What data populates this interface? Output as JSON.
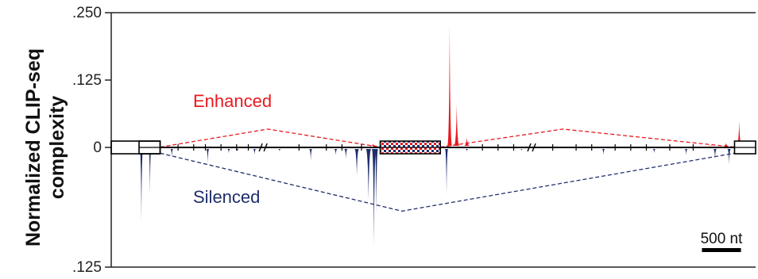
{
  "chart_data": {
    "type": "area",
    "ylabel_lines": [
      "Normalized CLIP-seq",
      "complexity"
    ],
    "yticks": [
      {
        "label": ".250",
        "value": 0.25
      },
      {
        "label": ".125",
        "value": 0.125
      },
      {
        "label": "0",
        "value": 0
      },
      {
        "label": ".125",
        "value": -0.125
      }
    ],
    "ylim": [
      -0.125,
      0.25
    ],
    "x_unit": "nt",
    "xlim": [
      0,
      7900
    ],
    "colors": {
      "enhanced": "#e8191f",
      "silenced": "#1f2d6b",
      "axis": "#222222"
    },
    "annotations": [
      {
        "text": "Enhanced",
        "color": "#e8191f"
      },
      {
        "text": "Silenced",
        "color": "#1f2d6b"
      }
    ],
    "scale_bar": {
      "label": "500 nt",
      "length_nt": 500
    },
    "exons": [
      {
        "name": "upstream-exon",
        "start": 0,
        "end": 270
      },
      {
        "name": "alternative-exon",
        "start": 3090,
        "end": 3860
      },
      {
        "name": "downstream-exon",
        "start": 7630,
        "end": 7900
      }
    ],
    "axis_breaks_x": [
      1600,
      5040
    ],
    "splice_lines": {
      "enhanced": [
        {
          "x": [
            270,
            1650,
            3090
          ],
          "y": [
            0.0006,
            0.034,
            0.0006
          ]
        },
        {
          "x": [
            3860,
            5430,
            7630
          ],
          "y": [
            0.0006,
            0.034,
            0.0006
          ]
        }
      ],
      "silenced": [
        {
          "x": [
            270,
            3370,
            7630
          ],
          "y": [
            -0.006,
            -0.0665,
            -0.006
          ]
        }
      ]
    },
    "series": [
      {
        "name": "Enhanced",
        "sign": 1,
        "peaks": [
          {
            "x": 3000,
            "height": 0.006,
            "width": 90
          },
          {
            "x": 3980,
            "height": 0.23,
            "width": 60
          },
          {
            "x": 4070,
            "height": 0.08,
            "width": 70
          },
          {
            "x": 4200,
            "height": 0.018,
            "width": 80
          },
          {
            "x": 7320,
            "height": 0.004,
            "width": 60
          },
          {
            "x": 7520,
            "height": 0.008,
            "width": 60
          },
          {
            "x": 7690,
            "height": 0.05,
            "width": 70
          }
        ]
      },
      {
        "name": "Silenced",
        "sign": -1,
        "peaks": [
          {
            "x": 30,
            "height": 0.078,
            "width": 45
          },
          {
            "x": 140,
            "height": 0.05,
            "width": 35
          },
          {
            "x": 420,
            "height": 0.01,
            "width": 40
          },
          {
            "x": 880,
            "height": 0.016,
            "width": 40
          },
          {
            "x": 1150,
            "height": 0.006,
            "width": 40
          },
          {
            "x": 1260,
            "height": 0.004,
            "width": 40
          },
          {
            "x": 1480,
            "height": 0.008,
            "width": 40
          },
          {
            "x": 1800,
            "height": 0.004,
            "width": 40
          },
          {
            "x": 2200,
            "height": 0.014,
            "width": 40
          },
          {
            "x": 2520,
            "height": 0.008,
            "width": 45
          },
          {
            "x": 2650,
            "height": 0.012,
            "width": 45
          },
          {
            "x": 2790,
            "height": 0.03,
            "width": 60
          },
          {
            "x": 2940,
            "height": 0.055,
            "width": 70
          },
          {
            "x": 3010,
            "height": 0.103,
            "width": 55
          },
          {
            "x": 3040,
            "height": 0.07,
            "width": 45
          },
          {
            "x": 3150,
            "height": 0.008,
            "width": 40
          },
          {
            "x": 3940,
            "height": 0.05,
            "width": 40
          },
          {
            "x": 4200,
            "height": 0.004,
            "width": 40
          },
          {
            "x": 4900,
            "height": 0.003,
            "width": 40
          },
          {
            "x": 5950,
            "height": 0.008,
            "width": 40
          },
          {
            "x": 6600,
            "height": 0.006,
            "width": 40
          },
          {
            "x": 7010,
            "height": 0.008,
            "width": 40
          },
          {
            "x": 7380,
            "height": 0.012,
            "width": 45
          },
          {
            "x": 7560,
            "height": 0.018,
            "width": 45
          }
        ]
      }
    ]
  }
}
